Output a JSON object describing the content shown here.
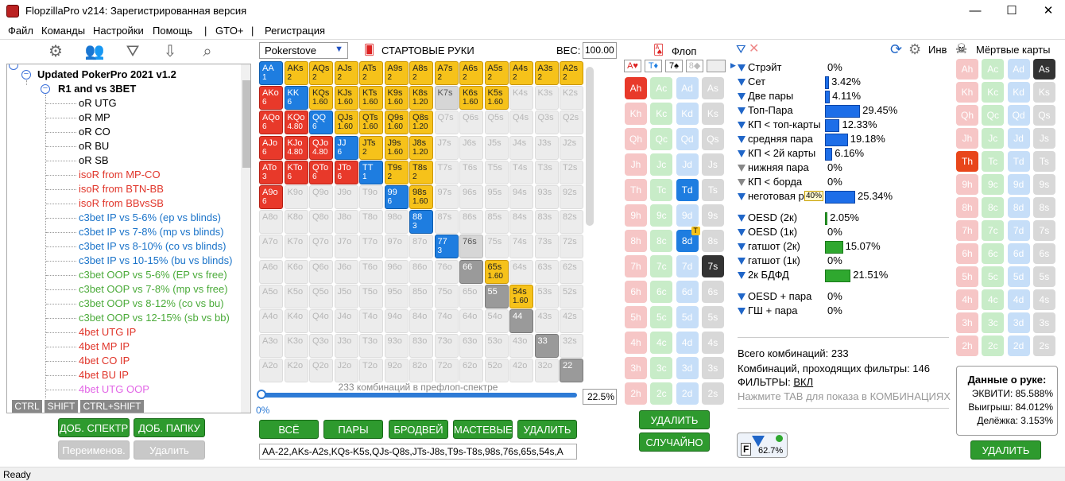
{
  "window": {
    "title": "FlopzillaPro v214: Зарегистрированная версия",
    "minimize": "—",
    "maximize": "☐",
    "close": "✕"
  },
  "menu": [
    "Файл",
    "Команды",
    "Настройки",
    "Помощь",
    "|",
    "GTO+",
    "|",
    "Регистрация"
  ],
  "tree": {
    "root": "Updated PokerPro 2021 v1.2",
    "folder": "R1 and vs 3BET",
    "items": [
      {
        "label": "oR UTG",
        "color": "#000000"
      },
      {
        "label": "oR MP",
        "color": "#000000"
      },
      {
        "label": "oR CO",
        "color": "#000000"
      },
      {
        "label": "oR BU",
        "color": "#000000"
      },
      {
        "label": "oR SB",
        "color": "#000000"
      },
      {
        "label": "isoR from MP-CO",
        "color": "#e0352a"
      },
      {
        "label": "isoR from BTN-BB",
        "color": "#e0352a"
      },
      {
        "label": "isoR from BBvsSB",
        "color": "#e0352a"
      },
      {
        "label": "c3bet IP vs 5-6% (ep vs blinds)",
        "color": "#1a73c9"
      },
      {
        "label": "c3bet IP vs 7-8% (mp vs blinds)",
        "color": "#1a73c9"
      },
      {
        "label": "c3bet IP vs 8-10% (co vs blinds)",
        "color": "#1a73c9"
      },
      {
        "label": "c3bet IP vs 10-15% (bu vs blinds)",
        "color": "#1a73c9"
      },
      {
        "label": "c3bet OOP vs 5-6% (EP vs free)",
        "color": "#4bab3a"
      },
      {
        "label": "c3bet OOP vs 7-8% (mp vs free)",
        "color": "#4bab3a"
      },
      {
        "label": "c3bet OOP vs 8-12% (co vs bu)",
        "color": "#4bab3a"
      },
      {
        "label": "c3bet OOP vs 12-15% (sb vs bb)",
        "color": "#4bab3a"
      },
      {
        "label": "4bet UTG IP",
        "color": "#e0352a"
      },
      {
        "label": "4bet MP IP",
        "color": "#e0352a"
      },
      {
        "label": "4bet CO IP",
        "color": "#e0352a"
      },
      {
        "label": "4bet BU IP",
        "color": "#e0352a"
      },
      {
        "label": "4bet UTG OOP",
        "color": "#e266e6"
      }
    ]
  },
  "modifiers": [
    "CTRL",
    "SHIFT",
    "CTRL+SHIFT"
  ],
  "left_buttons": {
    "add_range": "ДОБ. СПЕКТР",
    "add_folder": "ДОБ. ПАПКУ",
    "rename": "Переименов.",
    "delete": "Удалить"
  },
  "range": {
    "site": "Pokerstove",
    "header": "СТАРТОВЫЕ РУКИ",
    "weight_label": "ВЕС:",
    "weight_value": "100.00",
    "combos_text": "233 комбинаций в префлоп-спектре",
    "slider_min": "0%",
    "slider_value": "22.5%",
    "slider_fraction": 0.225,
    "buttons": [
      "ВСЁ",
      "ПАРЫ",
      "БРОДВЕЙ",
      "МАСТЕВЫЕ",
      "УДАЛИТЬ"
    ],
    "hands_text": "AA-22,AKs-A2s,KQs-K5s,QJs-Q8s,JTs-J8s,T9s-T8s,98s,76s,65s,54s,A",
    "ranks": [
      "A",
      "K",
      "Q",
      "J",
      "T",
      "9",
      "8",
      "7",
      "6",
      "5",
      "4",
      "3",
      "2"
    ],
    "cells": [
      [
        "b:AA:1",
        "y:AKs:2",
        "y:AQs:2",
        "y:AJs:2",
        "y:ATs:2",
        "y:A9s:2",
        "y:A8s:2",
        "y:A7s:2",
        "y:A6s:2",
        "y:A5s:2",
        "y:A4s:2",
        "y:A3s:2",
        "y:A2s:2"
      ],
      [
        "r:AKo:6",
        "b:KK:6",
        "y:KQs:1.60",
        "y:KJs:1.60",
        "y:KTs:1.60",
        "y:K9s:1.60",
        "y:K8s:1.20",
        "l:K7s:",
        "y:K6s:1.60",
        "y:K5s:1.60",
        "e:K4s:",
        "e:K3s:",
        "e:K2s:"
      ],
      [
        "r:AQo:6",
        "r:KQo:4.80",
        "b:QQ:6",
        "y:QJs:1.60",
        "y:QTs:1.60",
        "y:Q9s:1.60",
        "y:Q8s:1.20",
        "e:Q7s:",
        "e:Q6s:",
        "e:Q5s:",
        "e:Q4s:",
        "e:Q3s:",
        "e:Q2s:"
      ],
      [
        "r:AJo:6",
        "r:KJo:4.80",
        "r:QJo:4.80",
        "b:JJ:6",
        "y:JTs:2",
        "y:J9s:1.60",
        "y:J8s:1.20",
        "e:J7s:",
        "e:J6s:",
        "e:J5s:",
        "e:J4s:",
        "e:J3s:",
        "e:J2s:"
      ],
      [
        "r:ATo:3",
        "r:KTo:6",
        "r:QTo:6",
        "r:JTo:6",
        "b:TT:1",
        "y:T9s:2",
        "y:T8s:2",
        "e:T7s:",
        "e:T6s:",
        "e:T5s:",
        "e:T4s:",
        "e:T3s:",
        "e:T2s:"
      ],
      [
        "r:A9o:6",
        "e:K9o:",
        "e:Q9o:",
        "e:J9o:",
        "e:T9o:",
        "b:99:6",
        "y:98s:1.60",
        "e:97s:",
        "e:96s:",
        "e:95s:",
        "e:94s:",
        "e:93s:",
        "e:92s:"
      ],
      [
        "e:A8o:",
        "e:K8o:",
        "e:Q8o:",
        "e:J8o:",
        "e:T8o:",
        "e:98o:",
        "b:88:3",
        "e:87s:",
        "e:86s:",
        "e:85s:",
        "e:84s:",
        "e:83s:",
        "e:82s:"
      ],
      [
        "e:A7o:",
        "e:K7o:",
        "e:Q7o:",
        "e:J7o:",
        "e:T7o:",
        "e:97o:",
        "e:87o:",
        "b:77:3",
        "l:76s:",
        "e:75s:",
        "e:74s:",
        "e:73s:",
        "e:72s:"
      ],
      [
        "e:A6o:",
        "e:K6o:",
        "e:Q6o:",
        "e:J6o:",
        "e:T6o:",
        "e:96o:",
        "e:86o:",
        "e:76o:",
        "d:66:",
        "y:65s:1.60",
        "e:64s:",
        "e:63s:",
        "e:62s:"
      ],
      [
        "e:A5o:",
        "e:K5o:",
        "e:Q5o:",
        "e:J5o:",
        "e:T5o:",
        "e:95o:",
        "e:85o:",
        "e:75o:",
        "e:65o:",
        "d:55:",
        "y:54s:1.60",
        "e:53s:",
        "e:52s:"
      ],
      [
        "e:A4o:",
        "e:K4o:",
        "e:Q4o:",
        "e:J4o:",
        "e:T4o:",
        "e:94o:",
        "e:84o:",
        "e:74o:",
        "e:64o:",
        "e:54o:",
        "d:44:",
        "e:43s:",
        "e:42s:"
      ],
      [
        "e:A3o:",
        "e:K3o:",
        "e:Q3o:",
        "e:J3o:",
        "e:T3o:",
        "e:93o:",
        "e:83o:",
        "e:73o:",
        "e:63o:",
        "e:53o:",
        "e:43o:",
        "d:33:",
        "e:32s:"
      ],
      [
        "e:A2o:",
        "e:K2o:",
        "e:Q2o:",
        "e:J2o:",
        "e:T2o:",
        "e:92o:",
        "e:82o:",
        "e:72o:",
        "e:62o:",
        "e:52o:",
        "e:42o:",
        "e:32o:",
        "d:22:"
      ]
    ]
  },
  "flop": {
    "header": "Флоп",
    "suit_boxes": [
      "A♥",
      "T♦",
      "7♠",
      "8◆",
      ""
    ],
    "ranks": [
      "A",
      "K",
      "Q",
      "J",
      "T",
      "9",
      "8",
      "7",
      "6",
      "5",
      "4",
      "3",
      "2"
    ],
    "suits": [
      "h",
      "c",
      "d",
      "s"
    ],
    "selected": [
      "Ah",
      "Td",
      "8d",
      "7s"
    ],
    "turn_badge": "T",
    "buttons": {
      "delete": "УДАЛИТЬ",
      "random": "СЛУЧАЙНО"
    }
  },
  "filters": {
    "rows": [
      {
        "label": "Стрэйт",
        "value": "0%",
        "pct": 0,
        "active": true,
        "color": "blue"
      },
      {
        "label": "Сет",
        "value": "3.42%",
        "pct": 3.42,
        "active": true,
        "color": "blue"
      },
      {
        "label": "Две пары",
        "value": "4.11%",
        "pct": 4.11,
        "active": true,
        "color": "blue"
      },
      {
        "label": "Топ-Пара",
        "value": "29.45%",
        "pct": 29.45,
        "active": true,
        "color": "blue"
      },
      {
        "label": "КП < топ-карты",
        "value": "12.33%",
        "pct": 12.33,
        "active": true,
        "color": "blue"
      },
      {
        "label": "средняя пара",
        "value": "19.18%",
        "pct": 19.18,
        "active": true,
        "color": "blue"
      },
      {
        "label": "КП < 2й карты",
        "value": "6.16%",
        "pct": 6.16,
        "active": true,
        "color": "blue"
      },
      {
        "label": "нижняя пара",
        "value": "0%",
        "pct": 0,
        "active": false,
        "color": "blue"
      },
      {
        "label": "КП < борда",
        "value": "0%",
        "pct": 0,
        "active": false,
        "color": "blue"
      },
      {
        "label": "неготовая р",
        "value": "25.34%",
        "pct": 25.34,
        "active": true,
        "color": "blue"
      },
      {
        "label": "OESD (2к)",
        "value": "2.05%",
        "pct": 2.05,
        "active": true,
        "color": "green"
      },
      {
        "label": "OESD (1к)",
        "value": "0%",
        "pct": 0,
        "active": true,
        "color": "green"
      },
      {
        "label": "гатшот (2к)",
        "value": "15.07%",
        "pct": 15.07,
        "active": true,
        "color": "green"
      },
      {
        "label": "гатшот (1к)",
        "value": "0%",
        "pct": 0,
        "active": true,
        "color": "green"
      },
      {
        "label": "2к БДФД",
        "value": "21.51%",
        "pct": 21.51,
        "active": true,
        "color": "green"
      },
      {
        "label": "OESD + пара",
        "value": "0%",
        "pct": 0,
        "active": true,
        "color": "blue"
      },
      {
        "label": "ГШ + пара",
        "value": "0%",
        "pct": 0,
        "active": true,
        "color": "blue"
      }
    ],
    "tooltip": "40%",
    "inv_label": "Инв",
    "total_combos": "Всего комбинаций: 233",
    "pass_combos": "Комбинаций, проходящих фильтры: 146",
    "filters_label": "ФИЛЬТРЫ:",
    "filters_value": "ВКЛ",
    "tab_hint": "Нажмите TAB для показа в КОМБИНАЦИЯХ",
    "badge_value": "62.7%"
  },
  "dead": {
    "header": "Мёртвые карты",
    "selected": [
      "As",
      "Th"
    ],
    "hand_data_title": "Данные о руке:",
    "equity": "ЭКВИТИ: 85.588%",
    "win": "Выигрыш: 84.012%",
    "split": "Делёжка: 3.153%",
    "delete": "УДАЛИТЬ"
  },
  "status": "Ready"
}
